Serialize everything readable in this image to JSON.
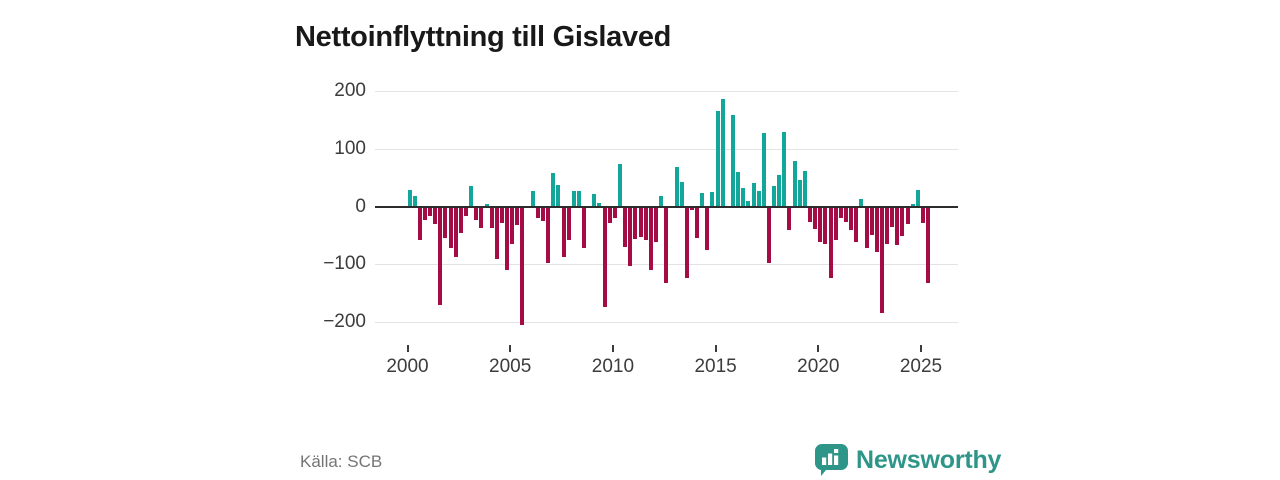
{
  "title": "Nettoinflyttning till Gislaved",
  "source": "Källa: SCB",
  "logo": {
    "text": "Newsworthy"
  },
  "colors": {
    "positive": "#12a79a",
    "negative": "#a30c45",
    "grid": "#e3e3e3",
    "zero_axis": "#2d2d2d",
    "axis_label": "#3c3c3c",
    "title": "#191919",
    "source": "#757575",
    "logo": "#2e9589"
  },
  "y_axis": {
    "tick_labels": [
      "200",
      "100",
      "0",
      "−100",
      "−200"
    ],
    "tick_values": [
      200,
      100,
      0,
      -100,
      -200
    ]
  },
  "x_axis": {
    "tick_labels": [
      "2000",
      "2005",
      "2010",
      "2015",
      "2020",
      "2025"
    ],
    "tick_values": [
      2000,
      2005,
      2010,
      2015,
      2020,
      2025
    ]
  },
  "chart_data": {
    "type": "bar",
    "title": "Nettoinflyttning till Gislaved",
    "xlabel": "",
    "ylabel": "",
    "frequency": "quarterly",
    "start": "2000Q1",
    "end": "2025Q2",
    "ylim": [
      -230,
      230
    ],
    "grid": true,
    "legend": false,
    "positive_color_meaning": "net in-migration",
    "negative_color_meaning": "net out-migration",
    "values": [
      28,
      18,
      -58,
      -23,
      -17,
      -30,
      -171,
      -54,
      -72,
      -87,
      -46,
      -17,
      35,
      -23,
      -37,
      5,
      -37,
      -90,
      -28,
      -110,
      -64,
      -32,
      -205,
      0,
      26,
      -20,
      -25,
      -98,
      58,
      38,
      -87,
      -58,
      26,
      27,
      -71,
      0,
      21,
      6,
      -173,
      -28,
      -20,
      73,
      -70,
      -103,
      -56,
      -52,
      -58,
      -110,
      -62,
      18,
      -132,
      0,
      68,
      42,
      -123,
      -6,
      -54,
      24,
      -75,
      25,
      165,
      186,
      0,
      158,
      60,
      32,
      9,
      41,
      27,
      127,
      -98,
      36,
      55,
      129,
      -40,
      78,
      46,
      62,
      -26,
      -39,
      -61,
      -64,
      -124,
      -58,
      -20,
      -26,
      -40,
      -61,
      13,
      -72,
      -49,
      -79,
      -184,
      -64,
      -35,
      -67,
      -51,
      -31,
      4,
      29,
      -28,
      -133
    ]
  }
}
